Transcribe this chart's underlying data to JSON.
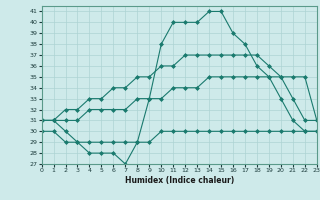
{
  "xlabel": "Humidex (Indice chaleur)",
  "bg_color": "#ceeaea",
  "grid_color": "#add4d4",
  "line_color": "#1a7a6e",
  "xlim": [
    0,
    23
  ],
  "ylim": [
    27,
    41.5
  ],
  "yticks": [
    27,
    28,
    29,
    30,
    31,
    32,
    33,
    34,
    35,
    36,
    37,
    38,
    39,
    40,
    41
  ],
  "xticks": [
    0,
    1,
    2,
    3,
    4,
    5,
    6,
    7,
    8,
    9,
    10,
    11,
    12,
    13,
    14,
    15,
    16,
    17,
    18,
    19,
    20,
    21,
    22,
    23
  ],
  "series": [
    {
      "x": [
        0,
        1,
        2,
        3,
        4,
        5,
        6,
        7,
        8,
        9,
        10,
        11,
        12,
        13,
        14,
        15,
        16,
        17,
        18,
        19,
        20,
        21,
        22,
        23
      ],
      "y": [
        30,
        30,
        29,
        29,
        29,
        29,
        29,
        29,
        29,
        29,
        30,
        30,
        30,
        30,
        30,
        30,
        30,
        30,
        30,
        30,
        30,
        30,
        30,
        30
      ]
    },
    {
      "x": [
        0,
        1,
        2,
        3,
        4,
        5,
        6,
        7,
        8,
        9,
        10,
        11,
        12,
        13,
        14,
        15,
        16,
        17,
        18,
        19,
        20,
        21,
        22,
        23
      ],
      "y": [
        31,
        31,
        31,
        31,
        32,
        32,
        32,
        32,
        33,
        33,
        33,
        34,
        34,
        34,
        35,
        35,
        35,
        35,
        35,
        35,
        35,
        35,
        35,
        31
      ]
    },
    {
      "x": [
        0,
        1,
        2,
        3,
        4,
        5,
        6,
        7,
        8,
        9,
        10,
        11,
        12,
        13,
        14,
        15,
        16,
        17,
        18,
        19,
        20,
        21,
        22,
        23
      ],
      "y": [
        31,
        31,
        32,
        32,
        33,
        33,
        34,
        34,
        35,
        35,
        36,
        36,
        37,
        37,
        37,
        37,
        37,
        37,
        37,
        36,
        35,
        33,
        31,
        31
      ]
    },
    {
      "x": [
        0,
        1,
        2,
        3,
        4,
        5,
        6,
        7,
        8,
        9,
        10,
        11,
        12,
        13,
        14,
        15,
        16,
        17,
        18,
        19,
        20,
        21,
        22,
        23
      ],
      "y": [
        31,
        31,
        30,
        29,
        28,
        28,
        28,
        27,
        29,
        33,
        38,
        40,
        40,
        40,
        41,
        41,
        39,
        38,
        36,
        35,
        33,
        31,
        30,
        30
      ]
    }
  ]
}
